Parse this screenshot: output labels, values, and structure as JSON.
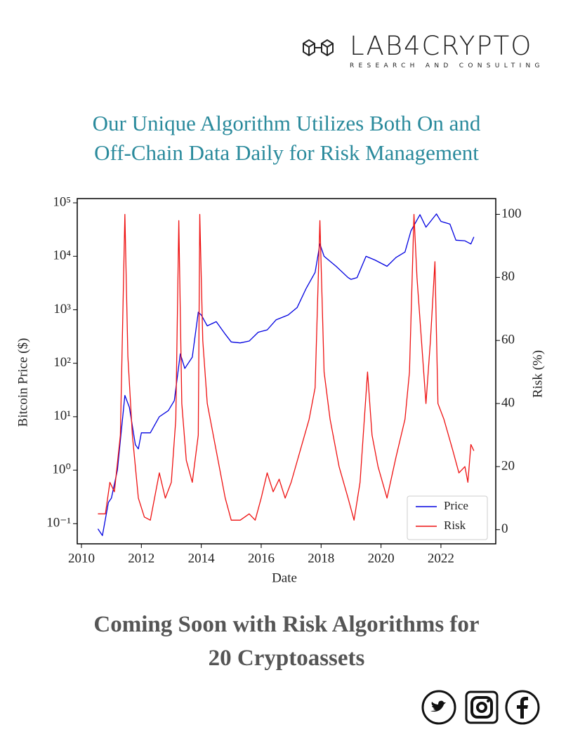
{
  "header": {
    "brand": "LAB4CRYPTO",
    "tagline": "RESEARCH AND CONSULTING"
  },
  "headline": {
    "lines": [
      "Our Unique Algorithm Utilizes Both On and",
      "Off-Chain Data Daily for Risk Management"
    ]
  },
  "chart_data": {
    "type": "line",
    "xlabel": "Date",
    "ylabel": "Bitcoin Price ($)",
    "y2label": "Risk (%)",
    "xlim": [
      2009.86,
      2023.83
    ],
    "xticks": [
      2010,
      2012,
      2014,
      2016,
      2018,
      2020,
      2022
    ],
    "yscale": "log",
    "ylim": [
      0.042,
      120000
    ],
    "yticks": [
      {
        "value": 0.1,
        "label": "10⁻¹"
      },
      {
        "value": 1,
        "label": "10⁰"
      },
      {
        "value": 10,
        "label": "10¹"
      },
      {
        "value": 100,
        "label": "10²"
      },
      {
        "value": 1000,
        "label": "10³"
      },
      {
        "value": 10000,
        "label": "10⁴"
      },
      {
        "value": 100000,
        "label": "10⁵"
      }
    ],
    "y2lim": [
      -4.5,
      105
    ],
    "y2ticks": [
      0,
      20,
      40,
      60,
      80,
      100
    ],
    "grid": false,
    "legend": "lower right",
    "series": [
      {
        "name": "Price",
        "color": "#0000e0",
        "axis": "y",
        "x": [
          2010.55,
          2010.7,
          2010.9,
          2011.0,
          2011.2,
          2011.45,
          2011.6,
          2011.8,
          2011.9,
          2012.0,
          2012.3,
          2012.6,
          2012.9,
          2013.1,
          2013.3,
          2013.45,
          2013.7,
          2013.9,
          2014.0,
          2014.2,
          2014.5,
          2014.8,
          2015.0,
          2015.3,
          2015.6,
          2015.9,
          2016.2,
          2016.5,
          2016.9,
          2017.2,
          2017.5,
          2017.8,
          2017.96,
          2018.1,
          2018.5,
          2018.9,
          2019.0,
          2019.2,
          2019.5,
          2019.8,
          2020.2,
          2020.5,
          2020.8,
          2021.0,
          2021.3,
          2021.5,
          2021.85,
          2022.0,
          2022.3,
          2022.5,
          2022.8,
          2023.0,
          2023.1
        ],
        "values": [
          0.08,
          0.06,
          0.25,
          0.3,
          1,
          25,
          15,
          3,
          2.5,
          5,
          5,
          10,
          13,
          20,
          150,
          80,
          130,
          900,
          800,
          500,
          600,
          350,
          250,
          240,
          260,
          380,
          420,
          650,
          800,
          1100,
          2500,
          5000,
          17000,
          10000,
          6500,
          4000,
          3700,
          4000,
          10000,
          8500,
          6500,
          9500,
          12000,
          30000,
          60000,
          35000,
          62000,
          45000,
          40000,
          20000,
          19500,
          17000,
          23000
        ]
      },
      {
        "name": "Risk",
        "color": "#ee1111",
        "axis": "y2",
        "x": [
          2010.55,
          2010.8,
          2010.95,
          2011.1,
          2011.3,
          2011.45,
          2011.55,
          2011.7,
          2011.9,
          2012.1,
          2012.3,
          2012.6,
          2012.8,
          2013.0,
          2013.15,
          2013.25,
          2013.35,
          2013.5,
          2013.7,
          2013.9,
          2013.95,
          2014.05,
          2014.2,
          2014.4,
          2014.6,
          2014.8,
          2015.0,
          2015.3,
          2015.6,
          2015.8,
          2016.0,
          2016.2,
          2016.4,
          2016.6,
          2016.8,
          2017.0,
          2017.3,
          2017.6,
          2017.8,
          2017.96,
          2018.1,
          2018.3,
          2018.6,
          2018.9,
          2019.1,
          2019.3,
          2019.55,
          2019.7,
          2019.9,
          2020.2,
          2020.5,
          2020.8,
          2020.95,
          2021.1,
          2021.2,
          2021.35,
          2021.5,
          2021.65,
          2021.8,
          2021.9,
          2022.1,
          2022.4,
          2022.6,
          2022.8,
          2022.9,
          2023.0,
          2023.1
        ],
        "values": [
          5,
          5,
          15,
          12,
          30,
          100,
          55,
          30,
          10,
          4,
          3,
          18,
          10,
          15,
          35,
          98,
          40,
          22,
          15,
          30,
          100,
          60,
          40,
          30,
          20,
          10,
          3,
          3,
          5,
          3,
          10,
          18,
          12,
          16,
          10,
          15,
          25,
          35,
          45,
          98,
          50,
          35,
          20,
          10,
          3,
          15,
          50,
          30,
          20,
          10,
          23,
          35,
          50,
          100,
          80,
          60,
          40,
          60,
          85,
          40,
          35,
          25,
          18,
          20,
          15,
          27,
          25
        ]
      }
    ]
  },
  "footer": {
    "lines": [
      "Coming Soon with Risk Algorithms  for",
      "20 Cryptoassets"
    ]
  }
}
